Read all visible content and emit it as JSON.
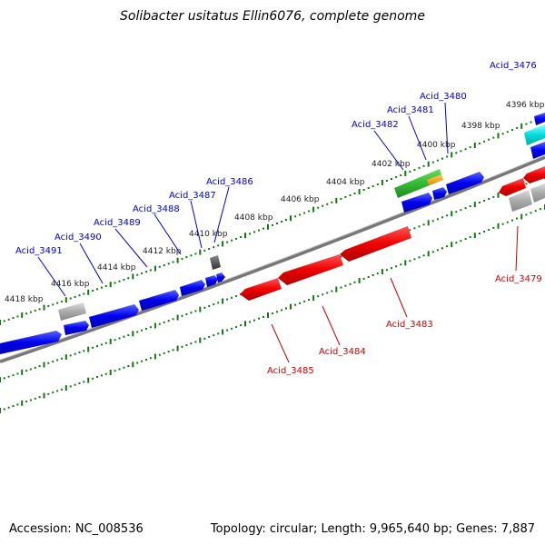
{
  "header": {
    "title": "Solibacter usitatus Ellin6076, complete genome"
  },
  "footer": {
    "accession": "Accession: NC_008536",
    "summary": "Topology: circular; Length: 9,965,640 bp; Genes: 7,887"
  },
  "colors": {
    "forward_strand_gene": "#0000ee",
    "reverse_strand_gene": "#ee0000",
    "rna_gene": "#33bb33",
    "pseudo_gene": "#aaaaaa",
    "highlight_gene": "#00dddd",
    "scale_marks": "#117711",
    "backbone": "#888888"
  },
  "ticks": [
    "4396 kbp",
    "4398 kbp",
    "4400 kbp",
    "4402 kbp",
    "4404 kbp",
    "4406 kbp",
    "4408 kbp",
    "4410 kbp",
    "4412 kbp",
    "4414 kbp",
    "4416 kbp",
    "4418 kbp"
  ],
  "genes": {
    "forward": [
      "Acid_3476",
      "Acid_3480",
      "Acid_3481",
      "Acid_3482",
      "Acid_3486",
      "Acid_3487",
      "Acid_3488",
      "Acid_3489",
      "Acid_3490",
      "Acid_3491"
    ],
    "reverse": [
      "Acid_3479",
      "Acid_3483",
      "Acid_3484",
      "Acid_3485"
    ]
  }
}
